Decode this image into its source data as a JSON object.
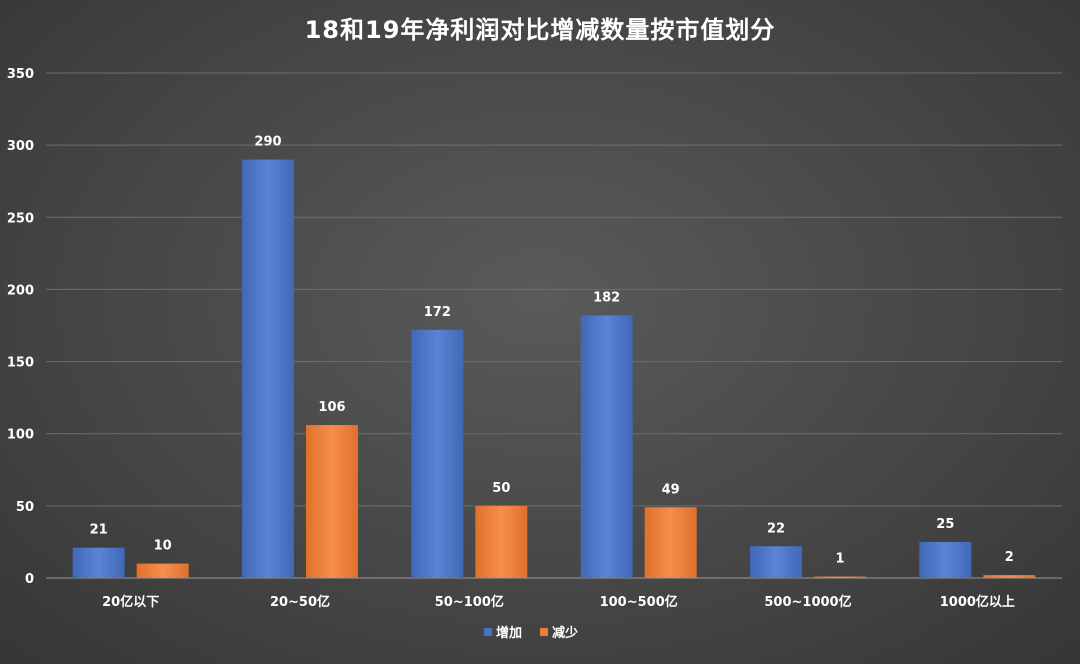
{
  "chart_data": {
    "type": "bar",
    "title": "18和19年净利润对比增减数量按市值划分",
    "xlabel": "",
    "ylabel": "",
    "ylim": [
      0,
      350
    ],
    "yticks": [
      0,
      50,
      100,
      150,
      200,
      250,
      300,
      350
    ],
    "grid": true,
    "legend_position": "bottom",
    "categories": [
      "20亿以下",
      "20~50亿",
      "50~100亿",
      "100~500亿",
      "500~1000亿",
      "1000亿以上"
    ],
    "series": [
      {
        "name": "增加",
        "color": "#4472c4",
        "values": [
          21,
          290,
          172,
          182,
          22,
          25
        ]
      },
      {
        "name": "减少",
        "color": "#ed7d31",
        "values": [
          10,
          106,
          50,
          49,
          1,
          2
        ]
      }
    ]
  }
}
